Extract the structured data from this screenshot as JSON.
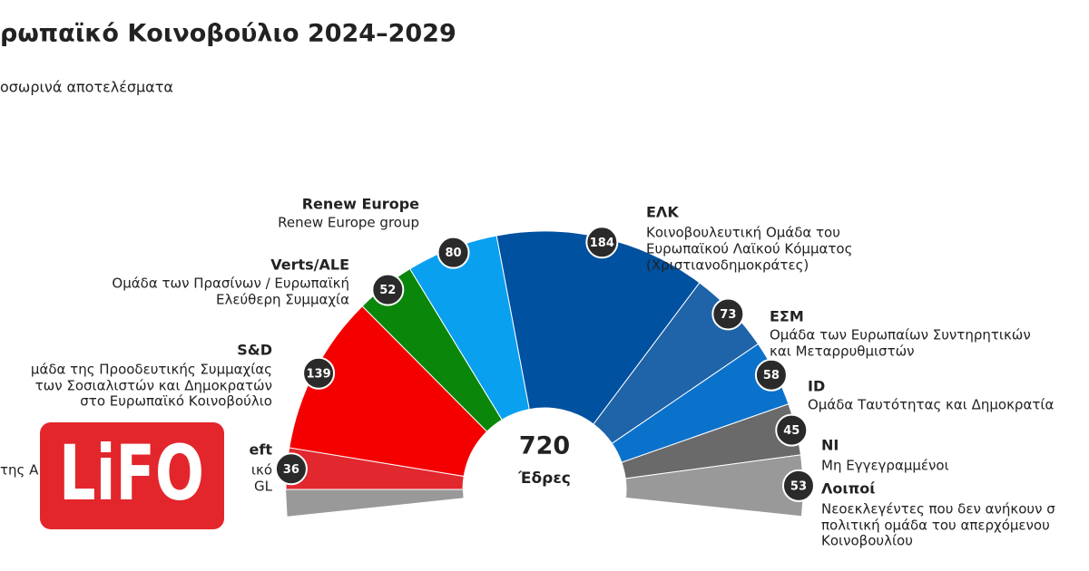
{
  "chart_data": {
    "type": "parliament",
    "title": "ρωπαϊκό Κοινοβούλιο 2024–2029",
    "subtitle": "οσωρινά αποτελέσματα",
    "total": 720,
    "total_label": "Έδρες",
    "series": [
      {
        "name": "eft",
        "description": [
          "της Α",
          "ικό",
          "GL"
        ],
        "value": 36,
        "color": "#e0282e"
      },
      {
        "name": "S&D",
        "description": [
          "μάδα της Προοδευτικής Συμμαχίας",
          "των Σοσιαλιστών και Δημοκρατών",
          "στο Ευρωπαϊκό Κοινοβούλιο"
        ],
        "value": 139,
        "color": "#f50000"
      },
      {
        "name": "Verts/ALE",
        "description": [
          "Ομάδα των Πρασίνων / Ευρωπαϊκή",
          "Ελεύθερη Συμμαχία"
        ],
        "value": 52,
        "color": "#0a870a"
      },
      {
        "name": "Renew Europe",
        "description": [
          "Renew Europe group"
        ],
        "value": 80,
        "color": "#0aa0f0"
      },
      {
        "name": "ΕΛΚ",
        "description": [
          "Κοινοβουλευτική Ομάδα του",
          "Ευρωπαϊκού Λαϊκού Κόμματος",
          "(Χριστιανοδημοκράτες)"
        ],
        "value": 184,
        "color": "#0051a0"
      },
      {
        "name": "ΕΣΜ",
        "description": [
          "Ομάδα των Ευρωπαίων Συντηρητικών",
          "και Μεταρρυθμιστών"
        ],
        "value": 73,
        "color": "#1f63a8"
      },
      {
        "name": "ID",
        "description": [
          "Ομάδα Ταυτότητας και Δημοκρατία"
        ],
        "value": 58,
        "color": "#0b72cc"
      },
      {
        "name": "NI",
        "description": [
          "Μη Εγγεγραμμένοι"
        ],
        "value": 45,
        "color": "#6a6a6a"
      },
      {
        "name": "Λοιποί",
        "description": [
          "Νεοεκλεγέντες που δεν ανήκουν σ",
          "πολιτική ομάδα του απερχόμενου",
          "Κοινοβουλίου"
        ],
        "value": 53,
        "color": "#999999"
      }
    ]
  },
  "logo": "LiFO"
}
